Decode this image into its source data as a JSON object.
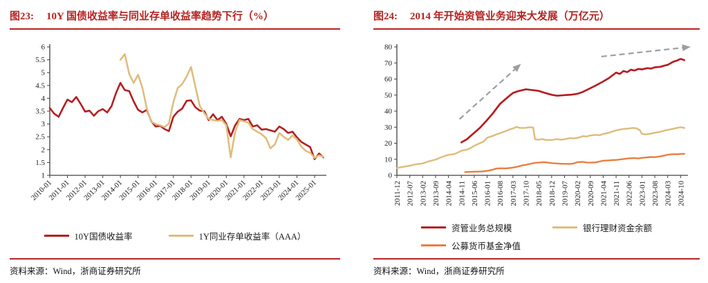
{
  "page": {
    "background": "#ffffff",
    "brand_red": "#b42322"
  },
  "figures": [
    {
      "label": "图23:",
      "title": "10Y 国债收益率与同业存单收益率趋势下行（%）",
      "source": "资料来源：Wind，浙商证券研究所"
    },
    {
      "label": "图24:",
      "title": "2014 年开始资管业务迎来大发展（万亿元）",
      "source": "资料来源：Wind，浙商证券研究所"
    }
  ],
  "chart_data": [
    {
      "type": "line",
      "title": "10Y 国债收益率与同业存单收益率趋势下行（%）",
      "xlabel": "",
      "ylabel": "",
      "ylim": [
        1,
        6
      ],
      "ytick_step": 0.5,
      "grid": false,
      "legend_position": "bottom",
      "axis_color": "#404040",
      "x_start": "2010-01",
      "x_end": "2025-09",
      "x_label_rotate": -45,
      "x_ticks": [
        "2010-01",
        "2011-01",
        "2012-01",
        "2013-01",
        "2014-01",
        "2015-01",
        "2016-01",
        "2017-01",
        "2018-01",
        "2019-01",
        "2020-01",
        "2021-01",
        "2022-01",
        "2023-01",
        "2024-01",
        "2025-01"
      ],
      "series": [
        {
          "name": "10Y国债收益率",
          "color": "#b51d20",
          "width": 2.6,
          "start": "2010-01",
          "step_months": 3,
          "values": [
            3.62,
            3.4,
            3.28,
            3.62,
            3.95,
            3.85,
            4.05,
            3.78,
            3.48,
            3.52,
            3.32,
            3.5,
            3.58,
            3.45,
            3.7,
            4.2,
            4.6,
            4.32,
            4.28,
            3.88,
            3.55,
            3.45,
            3.55,
            3.1,
            2.9,
            2.93,
            2.8,
            2.72,
            3.28,
            3.48,
            3.6,
            3.9,
            3.92,
            3.65,
            3.52,
            3.5,
            3.15,
            3.38,
            3.15,
            3.28,
            3.0,
            2.52,
            2.95,
            3.2,
            3.15,
            3.2,
            2.9,
            2.95,
            2.78,
            2.8,
            2.75,
            2.7,
            2.9,
            2.8,
            2.65,
            2.7,
            2.48,
            2.3,
            2.2,
            2.1,
            1.63,
            1.85,
            1.7
          ]
        },
        {
          "name": "1Y同业存单收益率（AAA）",
          "color": "#debd7e",
          "width": 2.6,
          "start": "2014-01",
          "step_months": 3,
          "values": [
            5.5,
            5.72,
            4.95,
            4.6,
            4.92,
            4.4,
            3.6,
            3.08,
            3.0,
            2.95,
            2.88,
            3.02,
            3.85,
            4.4,
            4.55,
            4.85,
            5.22,
            4.45,
            3.7,
            3.42,
            3.2,
            3.15,
            3.12,
            3.15,
            2.95,
            1.7,
            2.7,
            3.15,
            3.1,
            3.05,
            2.8,
            2.7,
            2.6,
            2.45,
            2.05,
            2.2,
            2.65,
            2.5,
            2.38,
            2.55,
            2.4,
            2.12,
            1.95,
            1.88,
            1.68,
            1.78,
            1.72
          ]
        }
      ]
    },
    {
      "type": "line",
      "title": "2014 年开始资管业务迎来大发展（万亿元）",
      "xlabel": "",
      "ylabel": "",
      "ylim": [
        0,
        80
      ],
      "ytick_step": 10,
      "grid": false,
      "legend_position": "bottom",
      "axis_color": "#404040",
      "arrow_color": "#9e9e9e",
      "x_start": "2011-12",
      "x_end": "2025-02",
      "x_label_rotate": -90,
      "x_ticks": [
        "2011-12",
        "2012-07",
        "2013-02",
        "2013-09",
        "2014-04",
        "2014-11",
        "2015-06",
        "2016-01",
        "2016-08",
        "2017-03",
        "2017-10",
        "2018-05",
        "2018-12",
        "2019-07",
        "2020-02",
        "2020-09",
        "2021-04",
        "2021-11",
        "2022-06",
        "2023-01",
        "2023-08",
        "2024-03",
        "2024-10"
      ],
      "series": [
        {
          "name": "资管业务总规模",
          "color": "#b51d20",
          "width": 2.7,
          "x_offsets": [
            35,
            38,
            42,
            45,
            49,
            52,
            56,
            60,
            63,
            66,
            70,
            73,
            77,
            80,
            84,
            87,
            91,
            95,
            98,
            101,
            105,
            108,
            112,
            115,
            119,
            121,
            123,
            125,
            127,
            129,
            131,
            133,
            136,
            138,
            140,
            143,
            145,
            147,
            150,
            152,
            154,
            155,
            156
          ],
          "values": [
            20.5,
            22.5,
            26.5,
            29.5,
            34.5,
            38.5,
            44.5,
            48.5,
            51.3,
            52.5,
            53.6,
            53.2,
            52.6,
            51.5,
            50.2,
            49.6,
            50.0,
            50.3,
            50.8,
            52.0,
            54.3,
            56.0,
            58.5,
            60.5,
            64.0,
            63.2,
            65.0,
            64.3,
            65.8,
            65.3,
            66.3,
            66.0,
            66.8,
            66.5,
            67.3,
            67.6,
            68.3,
            68.8,
            70.8,
            71.5,
            72.5,
            72.2,
            71.8
          ]
        },
        {
          "name": "银行理财资金余额",
          "color": "#debd7e",
          "width": 2.5,
          "x_offsets": [
            0,
            3,
            7,
            10,
            14,
            17,
            21,
            24,
            26,
            28,
            30,
            32,
            35,
            38,
            40,
            42,
            45,
            47,
            49,
            52,
            54,
            56,
            59,
            61,
            63,
            65,
            67,
            70,
            72,
            74,
            75,
            77,
            79,
            81,
            84,
            87,
            89,
            91,
            94,
            96,
            98,
            101,
            103,
            105,
            108,
            110,
            112,
            115,
            117,
            119,
            122,
            124,
            126,
            128,
            130,
            132,
            133,
            135,
            137,
            140,
            143,
            145,
            147,
            150,
            152,
            154,
            156
          ],
          "values": [
            4.5,
            5.2,
            6.0,
            6.8,
            7.4,
            8.6,
            9.8,
            11.2,
            12.0,
            12.8,
            13.0,
            13.6,
            15.3,
            16.0,
            17.0,
            18.4,
            20.0,
            21.0,
            23.4,
            24.5,
            25.5,
            26.3,
            27.5,
            28.5,
            29.2,
            30.2,
            29.5,
            29.6,
            30.0,
            29.7,
            22.5,
            22.2,
            22.6,
            22.0,
            22.0,
            22.6,
            22.2,
            22.5,
            23.2,
            23.0,
            23.3,
            24.4,
            24.2,
            24.8,
            25.2,
            25.0,
            25.8,
            26.5,
            27.3,
            28.0,
            28.7,
            29.0,
            29.2,
            29.5,
            29.3,
            28.0,
            25.8,
            25.5,
            25.8,
            26.5,
            27.2,
            27.8,
            28.3,
            29.0,
            29.5,
            30.0,
            29.5
          ]
        },
        {
          "name": "公募货币基金净值",
          "color": "#e87f40",
          "width": 2.4,
          "x_offsets": [
            37,
            40,
            43,
            46,
            49,
            52,
            54,
            56,
            59,
            61,
            63,
            66,
            68,
            70,
            73,
            75,
            77,
            80,
            82,
            84,
            87,
            89,
            91,
            94,
            96,
            98,
            101,
            103,
            105,
            108,
            110,
            112,
            115,
            117,
            119,
            122,
            124,
            126,
            129,
            131,
            133,
            136,
            138,
            140,
            143,
            145,
            147,
            150,
            152,
            154,
            156
          ],
          "values": [
            2.0,
            2.2,
            2.3,
            2.4,
            2.8,
            3.5,
            4.2,
            4.4,
            4.3,
            4.5,
            4.8,
            5.5,
            6.2,
            6.5,
            7.3,
            7.8,
            7.9,
            8.2,
            7.9,
            7.6,
            7.4,
            7.2,
            7.2,
            7.1,
            7.4,
            8.2,
            8.4,
            8.0,
            7.9,
            8.1,
            8.6,
            9.1,
            9.3,
            9.5,
            9.6,
            10.0,
            10.3,
            10.6,
            10.8,
            10.5,
            10.9,
            11.2,
            11.4,
            11.3,
            11.8,
            12.3,
            12.8,
            13.2,
            13.1,
            13.3,
            13.4
          ]
        }
      ],
      "arrows": [
        {
          "from": [
            34,
            35
          ],
          "to": [
            64,
            66
          ]
        },
        {
          "from": [
            111,
            74
          ],
          "to": [
            155,
            79.5
          ]
        }
      ]
    }
  ]
}
